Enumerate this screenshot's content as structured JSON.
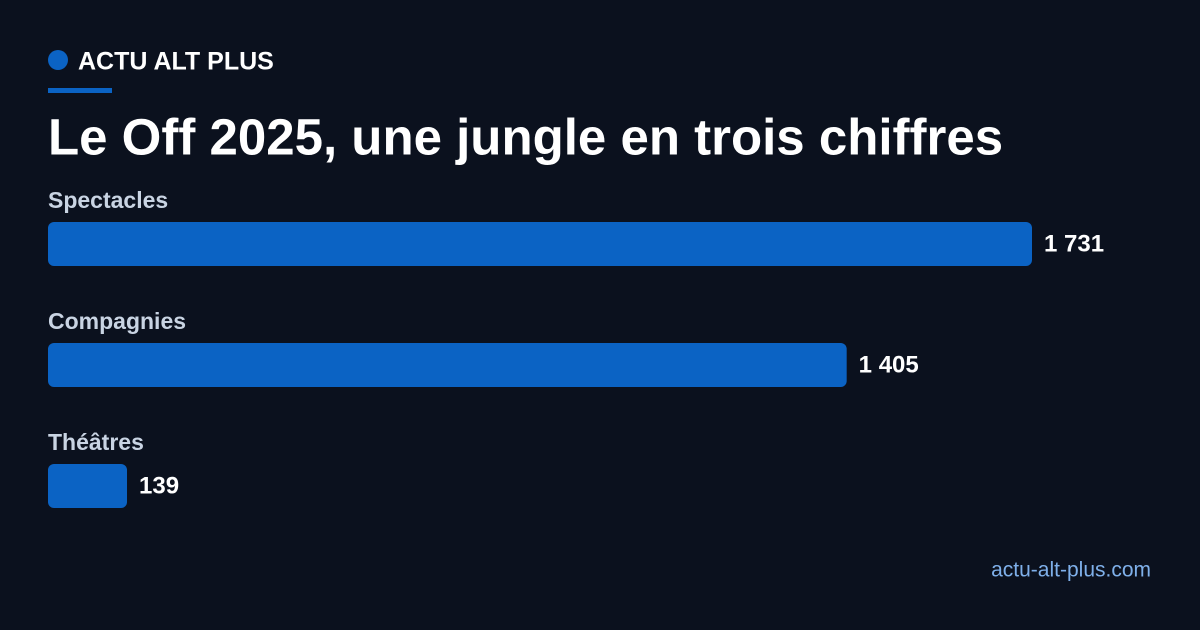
{
  "header": {
    "brand": "ACTU ALT PLUS"
  },
  "chart_data": {
    "type": "bar",
    "orientation": "horizontal",
    "title": "Le Off 2025, une jungle en trois chiffres",
    "categories": [
      "Spectacles",
      "Compagnies",
      "Théâtres"
    ],
    "values": [
      1731,
      1405,
      139
    ],
    "value_labels": [
      "1 731",
      "1 405",
      "139"
    ],
    "color": "#0b63c4"
  },
  "footer": {
    "url": "actu-alt-plus.com"
  }
}
